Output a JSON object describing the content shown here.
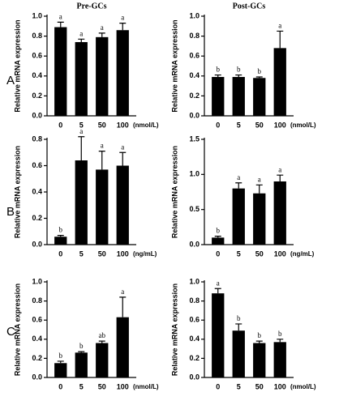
{
  "panel_labels": [
    "A",
    "B",
    "C"
  ],
  "chart_data": [
    {
      "type": "bar",
      "title": "Pre-GCs",
      "y_label": "Relative mRNA expression",
      "x_unit": "(nmol/L)",
      "color": "#000000",
      "categories": [
        "0",
        "5",
        "50",
        "100"
      ],
      "values": [
        0.89,
        0.74,
        0.79,
        0.86
      ],
      "errors": [
        0.05,
        0.03,
        0.04,
        0.07
      ],
      "letters": [
        "a",
        "a",
        "a",
        "a"
      ],
      "ylim": [
        0,
        1.0
      ],
      "yticks": [
        {
          "value": 0,
          "label": "0.0"
        },
        0.2,
        0.4,
        0.6,
        0.8,
        {
          "value": 1.0,
          "label": "1.0"
        }
      ]
    },
    {
      "type": "bar",
      "title": "Post-GCs",
      "y_label": "Relative mRNA expression",
      "x_unit": "(nmol/L)",
      "color": "#000000",
      "categories": [
        "0",
        "5",
        "50",
        "100"
      ],
      "values": [
        0.39,
        0.39,
        0.38,
        0.68
      ],
      "errors": [
        0.02,
        0.02,
        0.01,
        0.17
      ],
      "letters": [
        "b",
        "b",
        "b",
        "a"
      ],
      "ylim": [
        0,
        1.0
      ],
      "yticks": [
        {
          "value": 0,
          "label": "0.0"
        },
        0.2,
        0.4,
        0.6,
        0.8,
        {
          "value": 1.0,
          "label": "1.0"
        }
      ]
    },
    {
      "type": "bar",
      "y_label": "Relative mRNA expression",
      "x_unit": "(ng/mL)",
      "color": "#000000",
      "categories": [
        "0",
        "5",
        "50",
        "100"
      ],
      "values": [
        0.06,
        0.64,
        0.57,
        0.6
      ],
      "errors": [
        0.01,
        0.18,
        0.14,
        0.1
      ],
      "letters": [
        "b",
        "a",
        "a",
        "a"
      ],
      "ylim": [
        0,
        0.8
      ],
      "yticks": [
        {
          "value": 0,
          "label": "0.0"
        },
        0.2,
        0.4,
        0.6,
        0.8
      ]
    },
    {
      "type": "bar",
      "y_label": "Relative mRNA expression",
      "x_unit": "(ng/mL)",
      "color": "#000000",
      "categories": [
        "0",
        "5",
        "50",
        "100"
      ],
      "values": [
        0.1,
        0.8,
        0.73,
        0.9
      ],
      "errors": [
        0.02,
        0.08,
        0.12,
        0.09
      ],
      "letters": [
        "b",
        "a",
        "a",
        "a"
      ],
      "ylim": [
        0,
        1.5
      ],
      "yticks": [
        {
          "value": 0,
          "label": "0.0"
        },
        0.5,
        {
          "value": 1.0,
          "label": "1.0"
        },
        1.5
      ]
    },
    {
      "type": "bar",
      "y_label": "Relative mRNA expression",
      "x_unit": "(nmol/L)",
      "color": "#000000",
      "categories": [
        "0",
        "5",
        "50",
        "100"
      ],
      "values": [
        0.15,
        0.26,
        0.36,
        0.63
      ],
      "errors": [
        0.02,
        0.01,
        0.02,
        0.21
      ],
      "letters": [
        "b",
        "b",
        "ab",
        "a"
      ],
      "ylim": [
        0,
        1.0
      ],
      "yticks": [
        {
          "value": 0,
          "label": "0.0"
        },
        0.2,
        0.4,
        0.6,
        0.8,
        {
          "value": 1.0,
          "label": "1.0"
        }
      ]
    },
    {
      "type": "bar",
      "y_label": "Relative mRNA expression",
      "x_unit": "(nmol/L)",
      "color": "#000000",
      "categories": [
        "0",
        "5",
        "50",
        "100"
      ],
      "values": [
        0.88,
        0.49,
        0.36,
        0.37
      ],
      "errors": [
        0.05,
        0.07,
        0.02,
        0.03
      ],
      "letters": [
        "a",
        "b",
        "b",
        "b"
      ],
      "ylim": [
        0,
        1.0
      ],
      "yticks": [
        {
          "value": 0,
          "label": "0.0"
        },
        0.2,
        0.4,
        0.6,
        0.8,
        {
          "value": 1.0,
          "label": "1.0"
        }
      ]
    }
  ]
}
